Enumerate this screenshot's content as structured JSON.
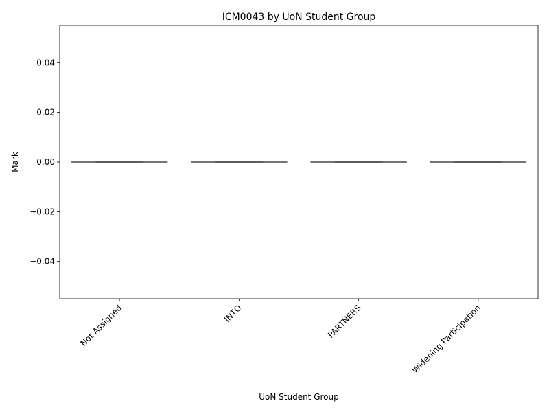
{
  "chart_data": {
    "type": "box",
    "title": "ICM0043 by UoN Student Group",
    "xlabel": "UoN Student Group",
    "ylabel": "Mark",
    "categories": [
      "Not Assigned",
      "INTO",
      "PARTNERS",
      "Widening Participation"
    ],
    "boxes": [
      {
        "category": "Not Assigned",
        "min": 0,
        "q1": 0,
        "median": 0,
        "q3": 0,
        "max": 0
      },
      {
        "category": "INTO",
        "min": 0,
        "q1": 0,
        "median": 0,
        "q3": 0,
        "max": 0
      },
      {
        "category": "PARTNERS",
        "min": 0,
        "q1": 0,
        "median": 0,
        "q3": 0,
        "max": 0
      },
      {
        "category": "Widening Participation",
        "min": 0,
        "q1": 0,
        "median": 0,
        "q3": 0,
        "max": 0
      }
    ],
    "ylim": [
      -0.055,
      0.055
    ],
    "yticks": [
      -0.04,
      -0.02,
      0.0,
      0.02,
      0.04
    ],
    "ytick_labels": [
      "−0.04",
      "−0.02",
      "0.00",
      "0.02",
      "0.04"
    ],
    "xtick_rotation": 45,
    "grid": false,
    "colors": {
      "line": "#3d3d3d",
      "axis": "#000000"
    }
  }
}
